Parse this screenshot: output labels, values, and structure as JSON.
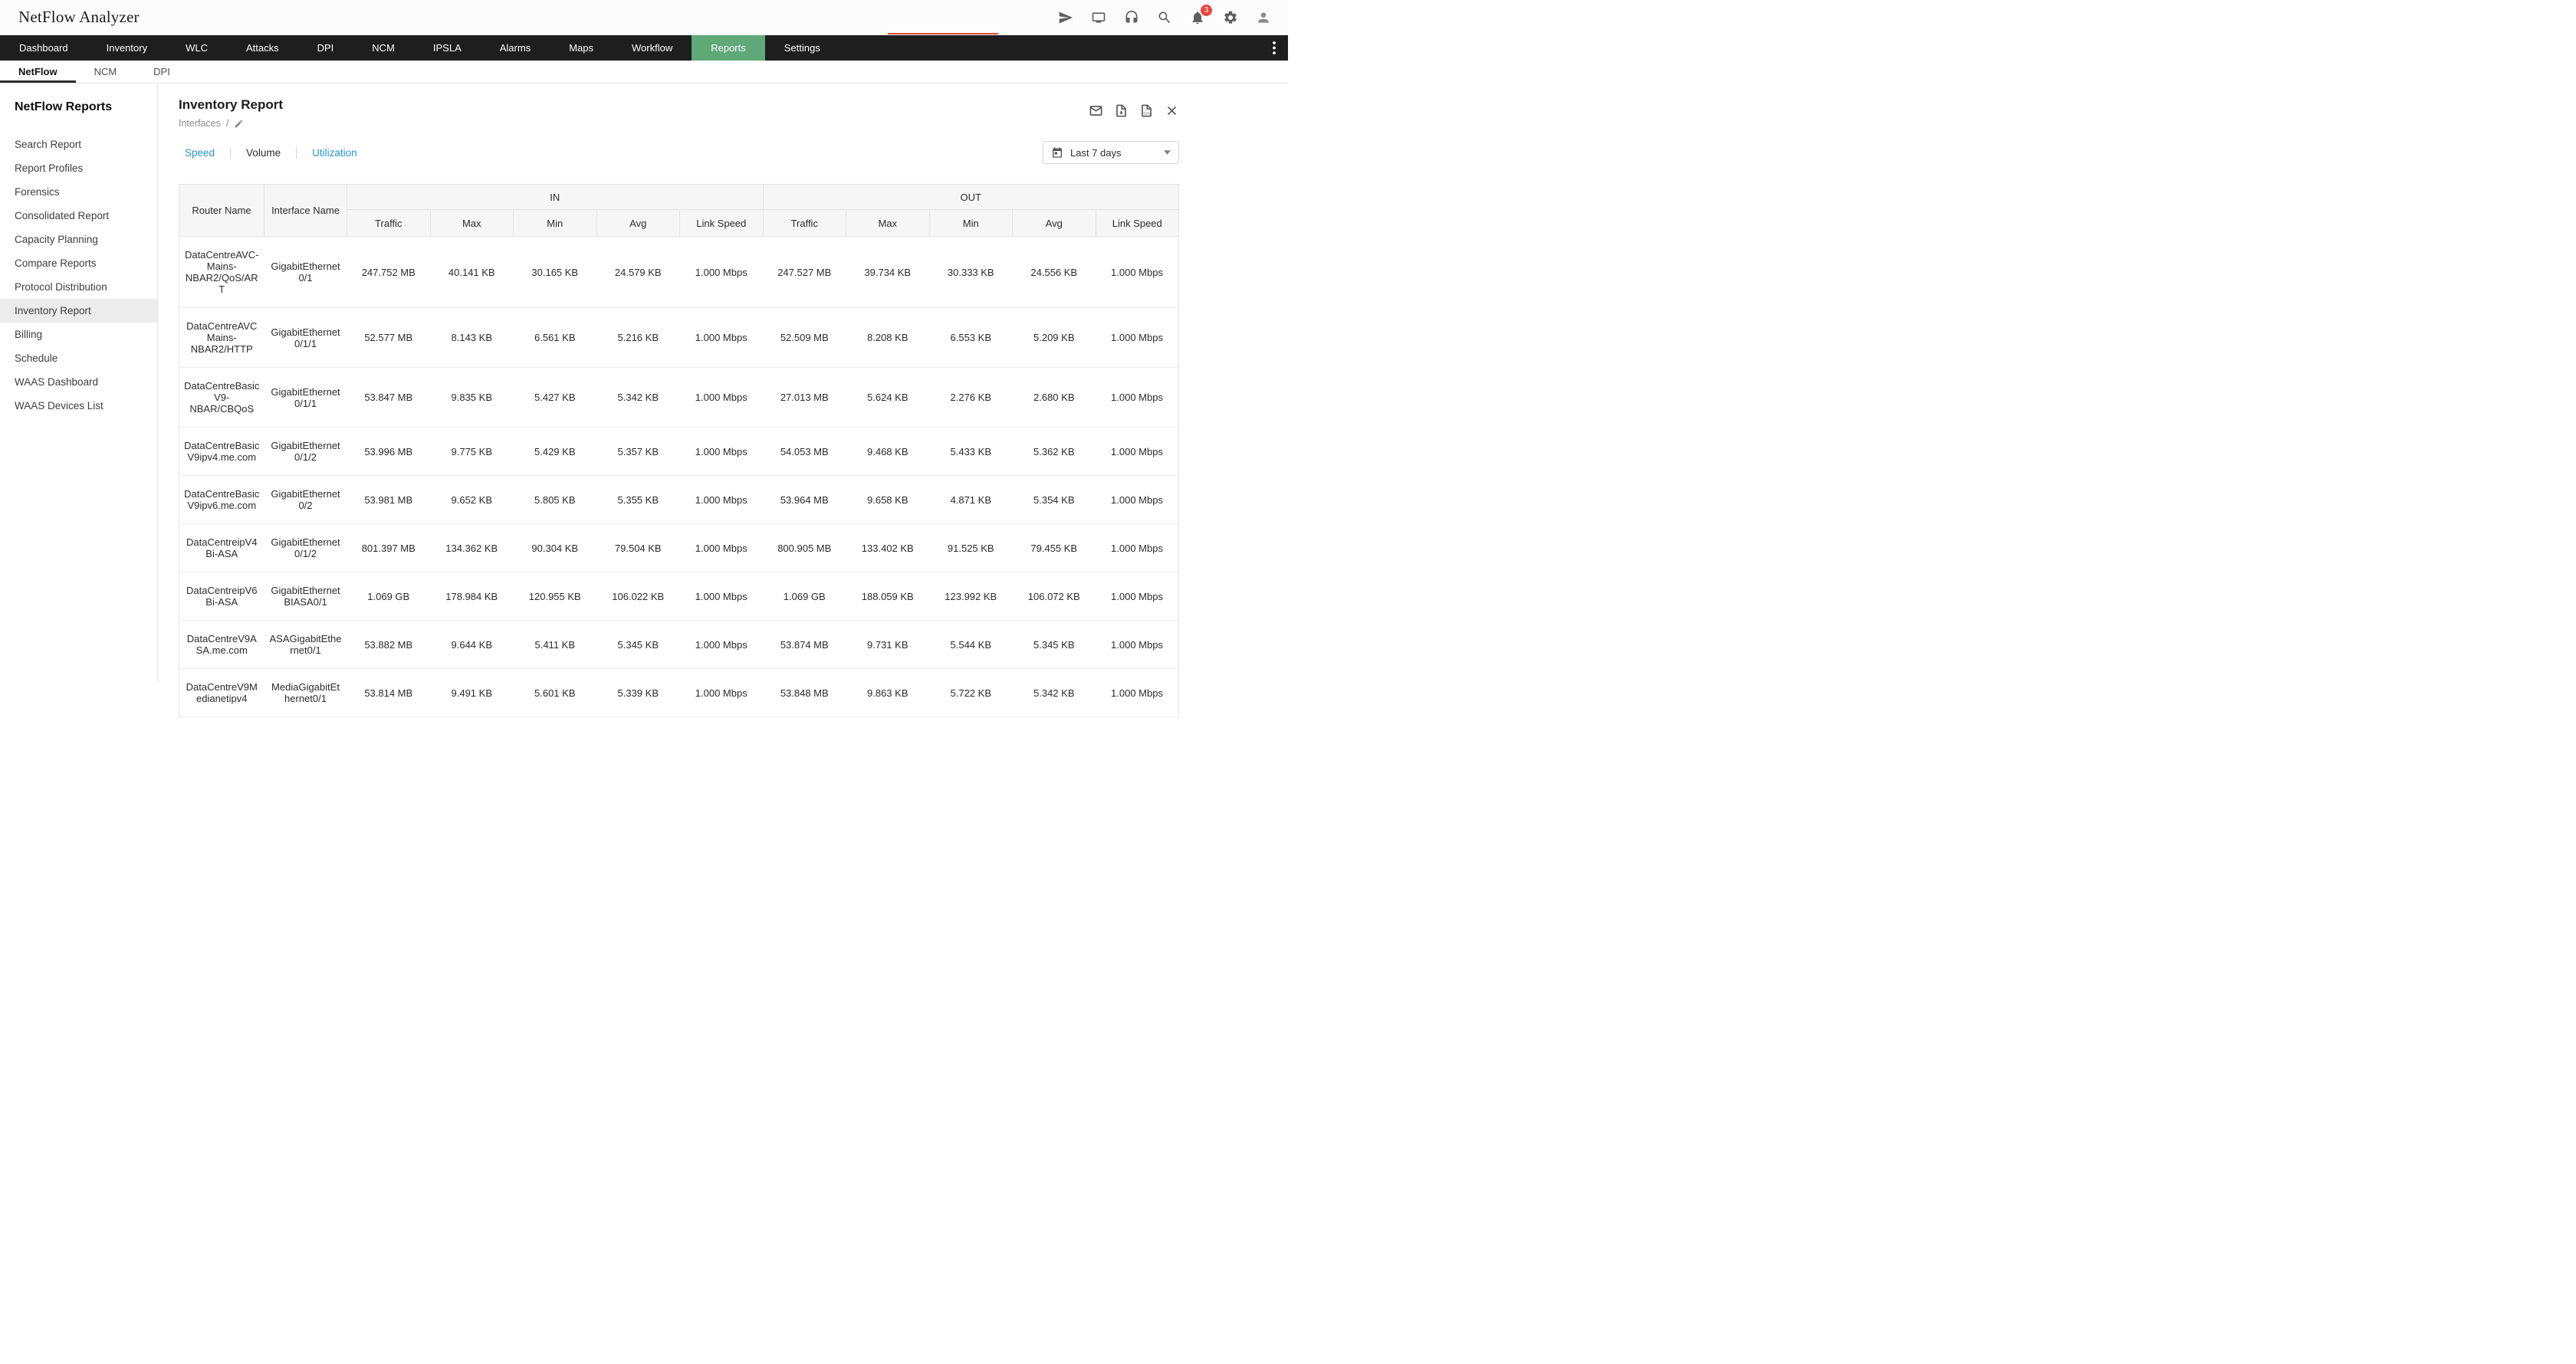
{
  "app": {
    "title": "NetFlow Analyzer",
    "notification_count": "3"
  },
  "colors": {
    "accent_green": "#5FA878",
    "link_blue": "#2596D1",
    "badge_red": "#E8463C",
    "nav_dark": "#1E1E1E"
  },
  "nav": {
    "items": [
      "Dashboard",
      "Inventory",
      "WLC",
      "Attacks",
      "DPI",
      "NCM",
      "IPSLA",
      "Alarms",
      "Maps",
      "Workflow",
      "Reports",
      "Settings"
    ],
    "active": "Reports"
  },
  "subnav": {
    "items": [
      "NetFlow",
      "NCM",
      "DPI"
    ],
    "active": "NetFlow"
  },
  "sidebar": {
    "title": "NetFlow Reports",
    "items": [
      "Search Report",
      "Report Profiles",
      "Forensics",
      "Consolidated Report",
      "Capacity Planning",
      "Compare Reports",
      "Protocol Distribution",
      "Inventory Report",
      "Billing",
      "Schedule",
      "WAAS Dashboard",
      "WAAS Devices List"
    ],
    "active": "Inventory Report"
  },
  "report": {
    "title": "Inventory Report",
    "breadcrumb": "Interfaces",
    "breadcrumb_separator": "/",
    "view_tabs": [
      "Speed",
      "Volume",
      "Utilization"
    ],
    "active_view_tab": "Volume",
    "date_range": "Last 7 days",
    "table": {
      "router_header": "Router Name",
      "interface_header": "Interface Name",
      "in_header": "IN",
      "out_header": "OUT",
      "metric_headers": [
        "Traffic",
        "Max",
        "Min",
        "Avg",
        "Link Speed"
      ],
      "rows": [
        {
          "router": "DataCentreAVC-Mains-NBAR2/QoS/ART",
          "interface": "GigabitEthernet0/1",
          "in": [
            "247.752 MB",
            "40.141 KB",
            "30.165 KB",
            "24.579 KB",
            "1.000 Mbps"
          ],
          "out": [
            "247.527 MB",
            "39.734 KB",
            "30.333 KB",
            "24.556 KB",
            "1.000 Mbps"
          ]
        },
        {
          "router": "DataCentreAVCMains-NBAR2/HTTP",
          "interface": "GigabitEthernet0/1/1",
          "in": [
            "52.577 MB",
            "8.143 KB",
            "6.561 KB",
            "5.216 KB",
            "1.000 Mbps"
          ],
          "out": [
            "52.509 MB",
            "8.208 KB",
            "6.553 KB",
            "5.209 KB",
            "1.000 Mbps"
          ]
        },
        {
          "router": "DataCentreBasicV9-NBAR/CBQoS",
          "interface": "GigabitEthernet0/1/1",
          "in": [
            "53.847 MB",
            "9.835 KB",
            "5.427 KB",
            "5.342 KB",
            "1.000 Mbps"
          ],
          "out": [
            "27.013 MB",
            "5.624 KB",
            "2.276 KB",
            "2.680 KB",
            "1.000 Mbps"
          ]
        },
        {
          "router": "DataCentreBasicV9ipv4.me.com",
          "interface": "GigabitEthernet0/1/2",
          "in": [
            "53.996 MB",
            "9.775 KB",
            "5.429 KB",
            "5.357 KB",
            "1.000 Mbps"
          ],
          "out": [
            "54.053 MB",
            "9.468 KB",
            "5.433 KB",
            "5.362 KB",
            "1.000 Mbps"
          ]
        },
        {
          "router": "DataCentreBasicV9ipv6.me.com",
          "interface": "GigabitEthernet0/2",
          "in": [
            "53.981 MB",
            "9.652 KB",
            "5.805 KB",
            "5.355 KB",
            "1.000 Mbps"
          ],
          "out": [
            "53.964 MB",
            "9.658 KB",
            "4.871 KB",
            "5.354 KB",
            "1.000 Mbps"
          ]
        },
        {
          "router": "DataCentreipV4Bi-ASA",
          "interface": "GigabitEthernet0/1/2",
          "in": [
            "801.397 MB",
            "134.362 KB",
            "90.304 KB",
            "79.504 KB",
            "1.000 Mbps"
          ],
          "out": [
            "800.905 MB",
            "133.402 KB",
            "91.525 KB",
            "79.455 KB",
            "1.000 Mbps"
          ]
        },
        {
          "router": "DataCentreipV6Bi-ASA",
          "interface": "GigabitEthernetBIASA0/1",
          "in": [
            "1.069 GB",
            "178.984 KB",
            "120.955 KB",
            "106.022 KB",
            "1.000 Mbps"
          ],
          "out": [
            "1.069 GB",
            "188.059 KB",
            "123.992 KB",
            "106.072 KB",
            "1.000 Mbps"
          ]
        },
        {
          "router": "DataCentreV9ASA.me.com",
          "interface": "ASAGigabitEthernet0/1",
          "in": [
            "53.882 MB",
            "9.644 KB",
            "5.411 KB",
            "5.345 KB",
            "1.000 Mbps"
          ],
          "out": [
            "53.874 MB",
            "9.731 KB",
            "5.544 KB",
            "5.345 KB",
            "1.000 Mbps"
          ]
        },
        {
          "router": "DataCentreV9Medianetipv4",
          "interface": "MediaGigabitEthernet0/1",
          "in": [
            "53.814 MB",
            "9.491 KB",
            "5.601 KB",
            "5.339 KB",
            "1.000 Mbps"
          ],
          "out": [
            "53.848 MB",
            "9.863 KB",
            "5.722 KB",
            "5.342 KB",
            "1.000 Mbps"
          ]
        }
      ]
    }
  }
}
